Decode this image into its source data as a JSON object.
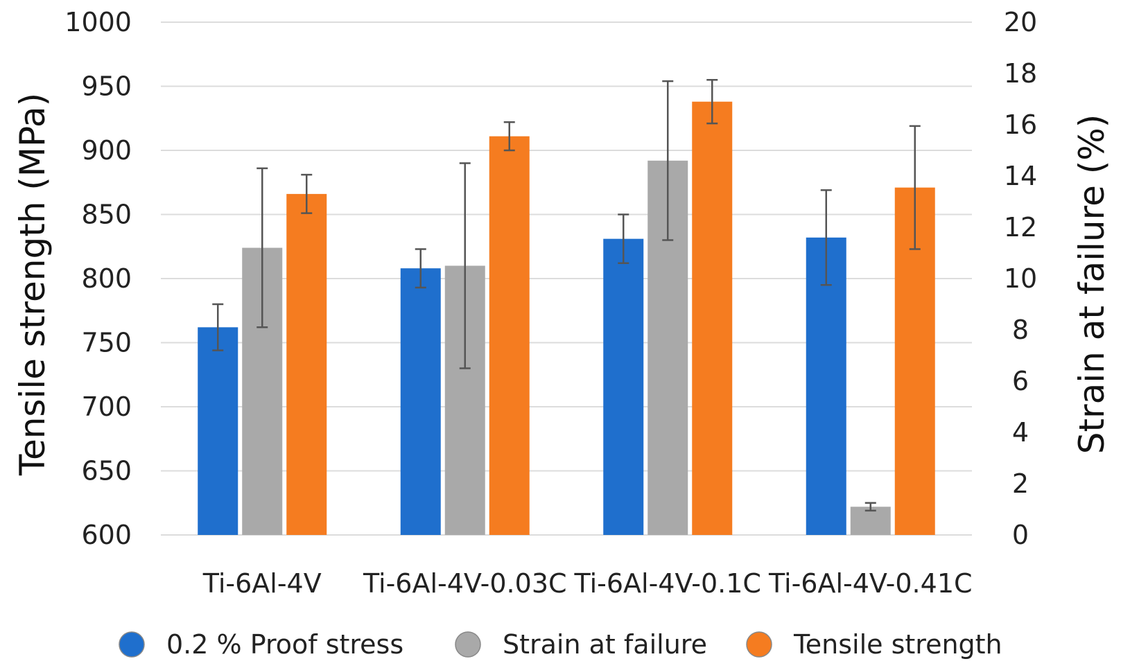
{
  "chart_data": {
    "type": "bar",
    "title": "",
    "categories": [
      "Ti-6Al-4V",
      "Ti-6Al-4V-0.03C",
      "Ti-6Al-4V-0.1C",
      "Ti-6Al-4V-0.41C"
    ],
    "ylabel": "Tensile strength (MPa)",
    "y2label": "Strain at failure (%)",
    "ylim": [
      600,
      1000
    ],
    "y2lim": [
      0,
      20
    ],
    "yticks": [
      "600",
      "650",
      "700",
      "750",
      "800",
      "850",
      "900",
      "950",
      "1000"
    ],
    "y2ticks": [
      "0",
      "2",
      "4",
      "6",
      "8",
      "10",
      "12",
      "14",
      "16",
      "18",
      "20"
    ],
    "grid": true,
    "legend_position": "bottom",
    "series": [
      {
        "name": "0.2 % Proof stress",
        "axis": "left",
        "color": "#1f6fcd",
        "values": [
          762,
          808,
          831,
          832
        ],
        "error": [
          18,
          15,
          19,
          37
        ]
      },
      {
        "name": "Strain at failure",
        "axis": "right",
        "color": "#a9a9a9",
        "values": [
          11.2,
          10.5,
          14.6,
          1.1
        ],
        "error": [
          3.1,
          4.0,
          3.1,
          0.15
        ]
      },
      {
        "name": "Tensile strength",
        "axis": "left",
        "color": "#f57c20",
        "values": [
          866,
          911,
          938,
          871
        ],
        "error": [
          15,
          11,
          17,
          48
        ]
      }
    ]
  }
}
